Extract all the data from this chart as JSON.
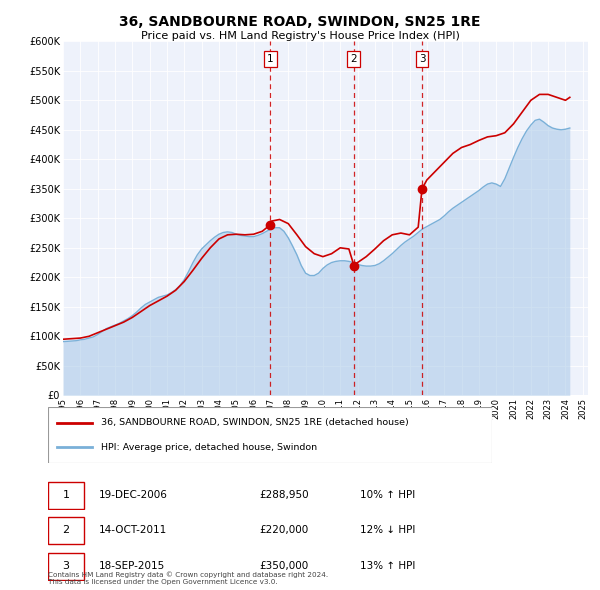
{
  "title": "36, SANDBOURNE ROAD, SWINDON, SN25 1RE",
  "subtitle": "Price paid vs. HM Land Registry's House Price Index (HPI)",
  "ylim": [
    0,
    600000
  ],
  "yticks": [
    0,
    50000,
    100000,
    150000,
    200000,
    250000,
    300000,
    350000,
    400000,
    450000,
    500000,
    550000,
    600000
  ],
  "ytick_labels": [
    "£0",
    "£50K",
    "£100K",
    "£150K",
    "£200K",
    "£250K",
    "£300K",
    "£350K",
    "£400K",
    "£450K",
    "£500K",
    "£550K",
    "£600K"
  ],
  "hpi_color": "#a8c8e8",
  "hpi_line_color": "#7ab0d8",
  "price_color": "#cc0000",
  "sale_color": "#cc0000",
  "vline_color": "#cc0000",
  "grid_color": "#ffffff",
  "background_color": "#eef2fb",
  "sale_dates": [
    2006.96,
    2011.79,
    2015.72
  ],
  "sale_prices": [
    288950,
    220000,
    350000
  ],
  "sale_labels": [
    "1",
    "2",
    "3"
  ],
  "sale_info": [
    {
      "num": "1",
      "date": "19-DEC-2006",
      "price": "£288,950",
      "hpi": "10% ↑ HPI"
    },
    {
      "num": "2",
      "date": "14-OCT-2011",
      "price": "£220,000",
      "hpi": "12% ↓ HPI"
    },
    {
      "num": "3",
      "date": "18-SEP-2015",
      "price": "£350,000",
      "hpi": "13% ↑ HPI"
    }
  ],
  "legend_line1": "36, SANDBOURNE ROAD, SWINDON, SN25 1RE (detached house)",
  "legend_line2": "HPI: Average price, detached house, Swindon",
  "footer": "Contains HM Land Registry data © Crown copyright and database right 2024.\nThis data is licensed under the Open Government Licence v3.0.",
  "hpi_data": {
    "years": [
      1995.0,
      1995.25,
      1995.5,
      1995.75,
      1996.0,
      1996.25,
      1996.5,
      1996.75,
      1997.0,
      1997.25,
      1997.5,
      1997.75,
      1998.0,
      1998.25,
      1998.5,
      1998.75,
      1999.0,
      1999.25,
      1999.5,
      1999.75,
      2000.0,
      2000.25,
      2000.5,
      2000.75,
      2001.0,
      2001.25,
      2001.5,
      2001.75,
      2002.0,
      2002.25,
      2002.5,
      2002.75,
      2003.0,
      2003.25,
      2003.5,
      2003.75,
      2004.0,
      2004.25,
      2004.5,
      2004.75,
      2005.0,
      2005.25,
      2005.5,
      2005.75,
      2006.0,
      2006.25,
      2006.5,
      2006.75,
      2007.0,
      2007.25,
      2007.5,
      2007.75,
      2008.0,
      2008.25,
      2008.5,
      2008.75,
      2009.0,
      2009.25,
      2009.5,
      2009.75,
      2010.0,
      2010.25,
      2010.5,
      2010.75,
      2011.0,
      2011.25,
      2011.5,
      2011.75,
      2012.0,
      2012.25,
      2012.5,
      2012.75,
      2013.0,
      2013.25,
      2013.5,
      2013.75,
      2014.0,
      2014.25,
      2014.5,
      2014.75,
      2015.0,
      2015.25,
      2015.5,
      2015.75,
      2016.0,
      2016.25,
      2016.5,
      2016.75,
      2017.0,
      2017.25,
      2017.5,
      2017.75,
      2018.0,
      2018.25,
      2018.5,
      2018.75,
      2019.0,
      2019.25,
      2019.5,
      2019.75,
      2020.0,
      2020.25,
      2020.5,
      2020.75,
      2021.0,
      2021.25,
      2021.5,
      2021.75,
      2022.0,
      2022.25,
      2022.5,
      2022.75,
      2023.0,
      2023.25,
      2023.5,
      2023.75,
      2024.0,
      2024.25
    ],
    "values": [
      91000,
      91500,
      92000,
      92500,
      94000,
      95000,
      97000,
      99000,
      103000,
      108000,
      113000,
      116000,
      119000,
      122000,
      126000,
      130000,
      135000,
      141000,
      148000,
      154000,
      158000,
      162000,
      166000,
      168000,
      170000,
      174000,
      179000,
      186000,
      196000,
      210000,
      225000,
      238000,
      248000,
      255000,
      262000,
      268000,
      273000,
      276000,
      277000,
      276000,
      273000,
      271000,
      270000,
      269000,
      269000,
      271000,
      274000,
      278000,
      282000,
      284000,
      284000,
      278000,
      267000,
      253000,
      238000,
      220000,
      207000,
      203000,
      203000,
      207000,
      215000,
      221000,
      225000,
      227000,
      228000,
      228000,
      227000,
      225000,
      222000,
      220000,
      219000,
      219000,
      220000,
      223000,
      228000,
      234000,
      240000,
      247000,
      254000,
      260000,
      265000,
      270000,
      276000,
      282000,
      286000,
      290000,
      294000,
      298000,
      304000,
      311000,
      317000,
      322000,
      327000,
      332000,
      337000,
      342000,
      347000,
      353000,
      358000,
      360000,
      358000,
      354000,
      367000,
      385000,
      403000,
      420000,
      435000,
      448000,
      458000,
      466000,
      468000,
      463000,
      457000,
      453000,
      451000,
      450000,
      451000,
      453000
    ]
  },
  "price_data": {
    "years": [
      1995.0,
      1995.5,
      1996.0,
      1996.5,
      1997.0,
      1997.5,
      1998.0,
      1998.5,
      1999.0,
      1999.5,
      2000.0,
      2000.5,
      2001.0,
      2001.5,
      2002.0,
      2002.5,
      2003.0,
      2003.5,
      2004.0,
      2004.5,
      2005.0,
      2005.5,
      2006.0,
      2006.5,
      2006.96,
      2007.0,
      2007.5,
      2008.0,
      2008.5,
      2009.0,
      2009.5,
      2010.0,
      2010.5,
      2011.0,
      2011.5,
      2011.79,
      2012.0,
      2012.5,
      2013.0,
      2013.5,
      2014.0,
      2014.5,
      2015.0,
      2015.5,
      2015.72,
      2016.0,
      2016.5,
      2017.0,
      2017.5,
      2018.0,
      2018.5,
      2019.0,
      2019.5,
      2020.0,
      2020.5,
      2021.0,
      2021.5,
      2022.0,
      2022.5,
      2023.0,
      2023.5,
      2024.0,
      2024.25
    ],
    "values": [
      95000,
      96000,
      97000,
      100000,
      106000,
      112000,
      118000,
      124000,
      132000,
      142000,
      152000,
      160000,
      168000,
      178000,
      193000,
      212000,
      232000,
      250000,
      265000,
      272000,
      273000,
      272000,
      273000,
      278000,
      288950,
      295000,
      298000,
      291000,
      272000,
      252000,
      240000,
      235000,
      240000,
      250000,
      248000,
      220000,
      225000,
      235000,
      248000,
      262000,
      272000,
      275000,
      272000,
      285000,
      350000,
      365000,
      380000,
      395000,
      410000,
      420000,
      425000,
      432000,
      438000,
      440000,
      445000,
      460000,
      480000,
      500000,
      510000,
      510000,
      505000,
      500000,
      505000
    ]
  }
}
